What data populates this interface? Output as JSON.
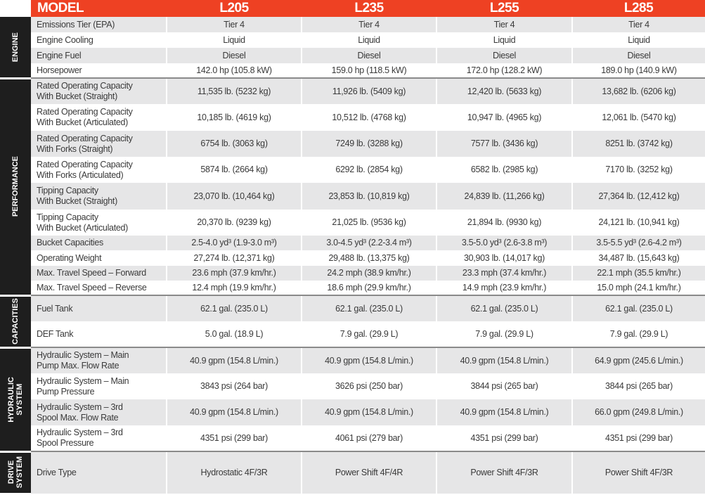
{
  "header": {
    "model_label": "MODEL",
    "models": [
      "L205",
      "L235",
      "L255",
      "L285"
    ]
  },
  "colors": {
    "header_bg": "#ee4123",
    "category_bg": "#1e1e1e",
    "stripe": "#e6e6e7"
  },
  "sections": [
    {
      "name": "ENGINE",
      "rows": [
        {
          "label": "Emissions Tier (EPA)",
          "values": [
            "Tier 4",
            "Tier 4",
            "Tier 4",
            "Tier 4"
          ]
        },
        {
          "label": "Engine Cooling",
          "values": [
            "Liquid",
            "Liquid",
            "Liquid",
            "Liquid"
          ]
        },
        {
          "label": "Engine Fuel",
          "values": [
            "Diesel",
            "Diesel",
            "Diesel",
            "Diesel"
          ]
        },
        {
          "label": "Horsepower",
          "values": [
            "142.0 hp (105.8 kW)",
            "159.0 hp (118.5 kW)",
            "172.0 hp (128.2 kW)",
            "189.0 hp (140.9 kW)"
          ]
        }
      ]
    },
    {
      "name": "PERFORMANCE",
      "rows": [
        {
          "label": "Rated Operating Capacity\nWith Bucket (Straight)",
          "values": [
            "11,535 lb. (5232 kg)",
            "11,926 lb. (5409 kg)",
            "12,420 lb. (5633 kg)",
            "13,682 lb. (6206 kg)"
          ]
        },
        {
          "label": "Rated Operating Capacity\nWith Bucket (Articulated)",
          "values": [
            "10,185 lb. (4619 kg)",
            "10,512 lb. (4768 kg)",
            "10,947 lb. (4965 kg)",
            "12,061 lb. (5470 kg)"
          ]
        },
        {
          "label": "Rated Operating Capacity\nWith Forks (Straight)",
          "values": [
            "6754 lb. (3063 kg)",
            "7249 lb. (3288 kg)",
            "7577 lb. (3436 kg)",
            "8251 lb. (3742 kg)"
          ]
        },
        {
          "label": "Rated Operating Capacity\nWith Forks (Articulated)",
          "values": [
            "5874 lb. (2664 kg)",
            "6292 lb. (2854 kg)",
            "6582 lb. (2985 kg)",
            "7170 lb. (3252 kg)"
          ]
        },
        {
          "label": "Tipping Capacity\nWith Bucket (Straight)",
          "values": [
            "23,070 lb. (10,464 kg)",
            "23,853 lb. (10,819 kg)",
            "24,839 lb. (11,266 kg)",
            "27,364 lb. (12,412 kg)"
          ]
        },
        {
          "label": "Tipping Capacity\nWith Bucket (Articulated)",
          "values": [
            "20,370 lb. (9239 kg)",
            "21,025 lb. (9536 kg)",
            "21,894 lb. (9930 kg)",
            "24,121 lb. (10,941 kg)"
          ]
        },
        {
          "label": "Bucket Capacities",
          "values": [
            "2.5-4.0 yd³ (1.9-3.0 m³)",
            "3.0-4.5 yd³ (2.2-3.4 m³)",
            "3.5-5.0 yd³ (2.6-3.8 m³)",
            "3.5-5.5 yd³ (2.6-4.2 m³)"
          ]
        },
        {
          "label": "Operating Weight",
          "values": [
            "27,274 lb. (12,371 kg)",
            "29,488 lb. (13,375 kg)",
            "30,903 lb. (14,017 kg)",
            "34,487 lb. (15,643 kg)"
          ]
        },
        {
          "label": "Max. Travel Speed – Forward",
          "values": [
            "23.6 mph (37.9 km/hr.)",
            "24.2 mph (38.9 km/hr.)",
            "23.3 mph (37.4 km/hr.)",
            "22.1 mph (35.5 km/hr.)"
          ]
        },
        {
          "label": "Max. Travel Speed – Reverse",
          "values": [
            "12.4 mph (19.9 km/hr.)",
            "18.6 mph (29.9 km/hr.)",
            "14.9 mph (23.9 km/hr.)",
            "15.0 mph (24.1 km/hr.)"
          ]
        }
      ]
    },
    {
      "name": "CAPACITIES",
      "rows": [
        {
          "label": "Fuel Tank",
          "values": [
            "62.1 gal. (235.0 L)",
            "62.1 gal. (235.0 L)",
            "62.1 gal. (235.0 L)",
            "62.1 gal. (235.0 L)"
          ]
        },
        {
          "label": "DEF Tank",
          "values": [
            "5.0 gal. (18.9 L)",
            "7.9 gal. (29.9 L)",
            "7.9 gal. (29.9 L)",
            "7.9 gal. (29.9 L)"
          ]
        }
      ]
    },
    {
      "name": "HYDRAULIC\nSYSTEM",
      "rows": [
        {
          "label": "Hydraulic System – Main\nPump Max. Flow Rate",
          "values": [
            "40.9 gpm (154.8 L/min.)",
            "40.9 gpm (154.8 L/min.)",
            "40.9 gpm (154.8 L/min.)",
            "64.9 gpm (245.6 L/min.)"
          ]
        },
        {
          "label": "Hydraulic System – Main\nPump Pressure",
          "values": [
            "3843 psi (264 bar)",
            "3626 psi (250 bar)",
            "3844 psi (265 bar)",
            "3844 psi (265 bar)"
          ]
        },
        {
          "label": "Hydraulic System – 3rd\nSpool Max. Flow Rate",
          "values": [
            "40.9 gpm (154.8 L/min.)",
            "40.9 gpm (154.8 L/min.)",
            "40.9 gpm (154.8 L/min.)",
            "66.0 gpm (249.8 L/min.)"
          ]
        },
        {
          "label": "Hydraulic System – 3rd\nSpool Pressure",
          "values": [
            "4351 psi (299 bar)",
            "4061 psi (279 bar)",
            "4351 psi (299 bar)",
            "4351 psi (299 bar)"
          ]
        }
      ]
    },
    {
      "name": "DRIVE\nSYSTEM",
      "rows": [
        {
          "label": "Drive Type",
          "values": [
            "Hydrostatic 4F/3R",
            "Power Shift 4F/4R",
            "Power Shift 4F/3R",
            "Power Shift 4F/3R"
          ]
        }
      ]
    }
  ]
}
